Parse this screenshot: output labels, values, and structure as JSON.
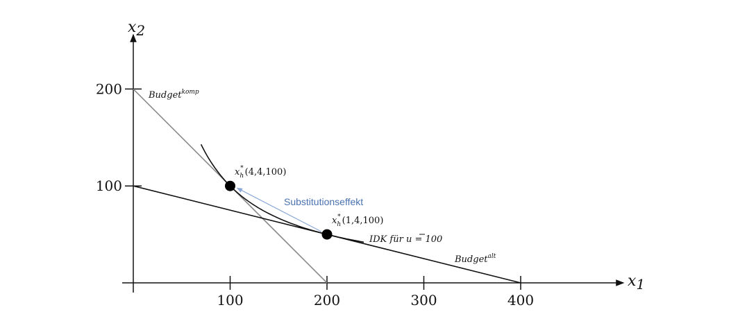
{
  "axes": {
    "x_label_var": "x",
    "x_label_sub": "1",
    "y_label_var": "x",
    "y_label_sub": "2",
    "x_ticks": [
      "100",
      "200",
      "300",
      "400"
    ],
    "y_ticks": [
      "100",
      "200"
    ],
    "x_tick_values": [
      100,
      200,
      300,
      400
    ],
    "y_tick_values": [
      100,
      200
    ],
    "x_range": [
      0,
      500
    ],
    "y_range": [
      0,
      260
    ]
  },
  "lines": {
    "budget_komp": {
      "base": "Budget",
      "sup": "komp",
      "from": [
        0,
        200
      ],
      "to": [
        200,
        0
      ]
    },
    "budget_alt": {
      "base": "Budget",
      "sup": "alt",
      "from": [
        0,
        100
      ],
      "to": [
        400,
        0
      ]
    }
  },
  "curve": {
    "label_prefix": "IDK für ",
    "label_var": "u",
    "label_suffix": " = 100",
    "utility": 100
  },
  "points": [
    {
      "id": "p1",
      "x": 100,
      "y": 100,
      "label_var": "x",
      "label_sub": "h",
      "label_sup": "*",
      "label_args": "(4,4,100)"
    },
    {
      "id": "p2",
      "x": 200,
      "y": 50,
      "label_var": "x",
      "label_sub": "h",
      "label_sup": "*",
      "label_args": "(1,4,100)"
    }
  ],
  "arrow": {
    "label": "Substitutionseffekt",
    "from": [
      200,
      50
    ],
    "to": [
      100,
      100
    ],
    "color": "#8aa8d8"
  },
  "colors": {
    "budget_komp": "#8a8a8a",
    "budget_alt": "#111111",
    "guides": "#888888",
    "effect_text": "#4a72b0"
  }
}
